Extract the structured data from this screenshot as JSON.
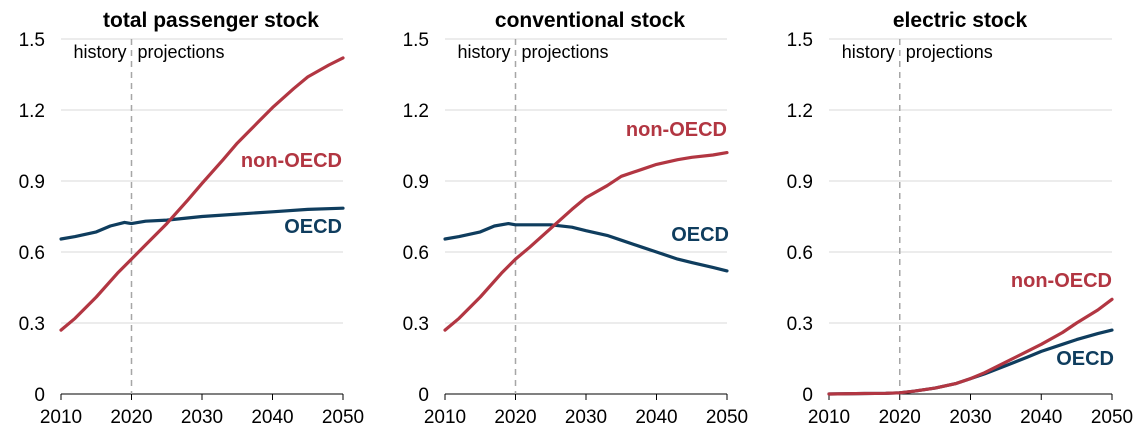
{
  "colors": {
    "non_oecd": "#b23642",
    "oecd": "#0f3d5e",
    "grid": "#d9d9d9",
    "divider": "#a6a6a6"
  },
  "annotations": {
    "history": "history",
    "projections": "projections"
  },
  "chart_data": [
    {
      "type": "line",
      "title": "total passenger stock",
      "xlim": [
        2010,
        2050
      ],
      "ylim": [
        0,
        1.5
      ],
      "x_ticks": [
        "2010",
        "2020",
        "2030",
        "2040",
        "2050"
      ],
      "y_ticks": [
        "0",
        "0.3",
        "0.6",
        "0.9",
        "1.2",
        "1.5"
      ],
      "divider_x": 2020,
      "grid": "horizontal",
      "series": [
        {
          "name": "non-OECD",
          "key": "non_oecd",
          "x": [
            2010,
            2012,
            2015,
            2018,
            2020,
            2022,
            2025,
            2028,
            2030,
            2033,
            2035,
            2038,
            2040,
            2043,
            2045,
            2048,
            2050
          ],
          "y": [
            0.27,
            0.32,
            0.41,
            0.51,
            0.57,
            0.63,
            0.72,
            0.82,
            0.89,
            0.99,
            1.06,
            1.15,
            1.21,
            1.29,
            1.34,
            1.39,
            1.42
          ]
        },
        {
          "name": "OECD",
          "key": "oecd",
          "x": [
            2010,
            2012,
            2015,
            2017,
            2019,
            2020,
            2022,
            2025,
            2030,
            2035,
            2040,
            2045,
            2050
          ],
          "y": [
            0.655,
            0.665,
            0.685,
            0.71,
            0.725,
            0.72,
            0.73,
            0.735,
            0.75,
            0.76,
            0.77,
            0.78,
            0.785
          ]
        }
      ]
    },
    {
      "type": "line",
      "title": "conventional stock",
      "xlim": [
        2010,
        2050
      ],
      "ylim": [
        0,
        1.5
      ],
      "x_ticks": [
        "2010",
        "2020",
        "2030",
        "2040",
        "2050"
      ],
      "y_ticks": [
        "0",
        "0.3",
        "0.6",
        "0.9",
        "1.2",
        "1.5"
      ],
      "divider_x": 2020,
      "grid": "horizontal",
      "series": [
        {
          "name": "non-OECD",
          "key": "non_oecd",
          "x": [
            2010,
            2012,
            2015,
            2018,
            2020,
            2022,
            2025,
            2028,
            2030,
            2033,
            2035,
            2038,
            2040,
            2043,
            2045,
            2048,
            2050
          ],
          "y": [
            0.27,
            0.32,
            0.41,
            0.51,
            0.57,
            0.62,
            0.7,
            0.78,
            0.83,
            0.88,
            0.92,
            0.95,
            0.97,
            0.99,
            1.0,
            1.01,
            1.02
          ]
        },
        {
          "name": "OECD",
          "key": "oecd",
          "x": [
            2010,
            2012,
            2015,
            2017,
            2019,
            2020,
            2022,
            2025,
            2028,
            2030,
            2033,
            2035,
            2038,
            2040,
            2043,
            2045,
            2048,
            2050
          ],
          "y": [
            0.655,
            0.665,
            0.685,
            0.71,
            0.72,
            0.715,
            0.715,
            0.715,
            0.705,
            0.69,
            0.67,
            0.65,
            0.62,
            0.6,
            0.57,
            0.555,
            0.535,
            0.52
          ]
        }
      ]
    },
    {
      "type": "line",
      "title": "electric stock",
      "xlim": [
        2010,
        2050
      ],
      "ylim": [
        0,
        1.5
      ],
      "x_ticks": [
        "2010",
        "2020",
        "2030",
        "2040",
        "2050"
      ],
      "y_ticks": [
        "0",
        "0.3",
        "0.6",
        "0.9",
        "1.2",
        "1.5"
      ],
      "divider_x": 2020,
      "grid": "horizontal",
      "series": [
        {
          "name": "non-OECD",
          "key": "non_oecd",
          "x": [
            2010,
            2015,
            2018,
            2020,
            2022,
            2025,
            2028,
            2030,
            2032,
            2035,
            2038,
            2040,
            2043,
            2045,
            2048,
            2050
          ],
          "y": [
            0,
            0.002,
            0.003,
            0.005,
            0.012,
            0.025,
            0.045,
            0.065,
            0.09,
            0.135,
            0.18,
            0.21,
            0.26,
            0.3,
            0.355,
            0.4
          ]
        },
        {
          "name": "OECD",
          "key": "oecd",
          "x": [
            2010,
            2015,
            2018,
            2020,
            2022,
            2025,
            2028,
            2030,
            2032,
            2035,
            2038,
            2040,
            2043,
            2045,
            2048,
            2050
          ],
          "y": [
            0,
            0.002,
            0.003,
            0.005,
            0.012,
            0.025,
            0.045,
            0.065,
            0.085,
            0.12,
            0.155,
            0.18,
            0.21,
            0.23,
            0.255,
            0.27
          ]
        }
      ]
    }
  ]
}
